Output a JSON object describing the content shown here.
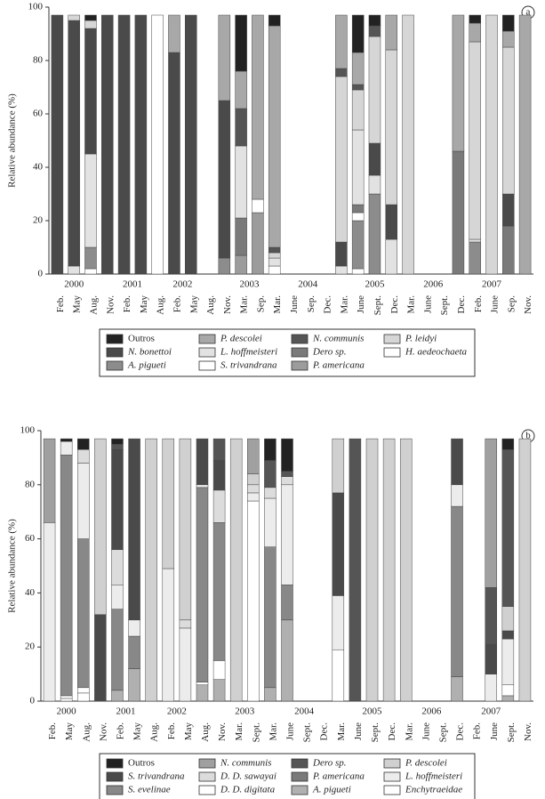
{
  "chart_data": [
    {
      "type": "bar",
      "stacked": true,
      "panel_label": "a",
      "y_label": "Relative abundance (%)",
      "categories": [
        "Feb.",
        "May",
        "Aug.",
        "Nov.",
        "Feb.",
        "May",
        "Aug.",
        "Feb.",
        "May",
        "Aug.",
        "Nov.",
        "Mar.",
        "Sep.",
        "Mar.",
        "June",
        "Sep.",
        "Dec.",
        "Mar.",
        "June",
        "Sept.",
        "Dec.",
        "Mar.",
        "June",
        "Sept.",
        "Dec.",
        "Feb.",
        "June",
        "Sep.",
        "Nov."
      ],
      "years": [
        "2000",
        "2001",
        "2002",
        "2003",
        "2004",
        "2005",
        "2006",
        "2007"
      ],
      "ylim": [
        0,
        100
      ],
      "yticks": [
        0,
        20,
        40,
        60,
        80,
        100
      ],
      "series": [
        {
          "name": "Outros",
          "color": "#222222",
          "values": [
            0,
            0,
            2,
            0,
            0,
            0,
            0,
            0,
            0,
            null,
            0,
            21,
            0,
            4,
            null,
            null,
            null,
            0,
            14,
            4,
            0,
            0,
            null,
            null,
            0,
            3,
            0,
            6,
            0
          ]
        },
        {
          "name": "P. descolei",
          "color": "#a8a8a8",
          "values": [
            0,
            0,
            0,
            0,
            0,
            0,
            0,
            14,
            0,
            null,
            32,
            14,
            69,
            83,
            null,
            null,
            null,
            20,
            12,
            0,
            13,
            0,
            null,
            null,
            51,
            7,
            0,
            6,
            97
          ]
        },
        {
          "name": "N. communis",
          "color": "#555555",
          "values": [
            0,
            0,
            0,
            0,
            0,
            0,
            0,
            0,
            0,
            null,
            0,
            14,
            0,
            2,
            null,
            null,
            null,
            3,
            2,
            4,
            0,
            0,
            null,
            null,
            0,
            0,
            0,
            0,
            0
          ]
        },
        {
          "name": "P. leidyi",
          "color": "#d6d6d6",
          "values": [
            0,
            2,
            3,
            0,
            0,
            0,
            0,
            0,
            0,
            null,
            0,
            0,
            0,
            2,
            null,
            null,
            null,
            62,
            15,
            40,
            58,
            97,
            null,
            null,
            0,
            74,
            97,
            55,
            0
          ]
        },
        {
          "name": "N. bonettoi",
          "color": "#4a4a4a",
          "values": [
            97,
            92,
            47,
            97,
            97,
            97,
            0,
            83,
            97,
            null,
            59,
            0,
            0,
            0,
            null,
            null,
            null,
            9,
            0,
            12,
            13,
            0,
            null,
            null,
            0,
            0,
            0,
            12,
            0
          ]
        },
        {
          "name": "L. hoffmeisteri",
          "color": "#e2e2e2",
          "values": [
            0,
            3,
            35,
            0,
            0,
            0,
            0,
            0,
            0,
            null,
            0,
            27,
            0,
            3,
            null,
            null,
            null,
            3,
            28,
            7,
            13,
            0,
            null,
            null,
            0,
            1,
            0,
            0,
            0
          ]
        },
        {
          "name": "Dero sp.",
          "color": "#7a7a7a",
          "values": [
            0,
            0,
            0,
            0,
            0,
            0,
            0,
            0,
            0,
            null,
            0,
            14,
            0,
            0,
            null,
            null,
            null,
            0,
            3,
            0,
            0,
            0,
            null,
            null,
            46,
            0,
            0,
            18,
            0
          ]
        },
        {
          "name": "H. aedeochaeta",
          "color": "#ffffff",
          "values": [
            0,
            0,
            0,
            0,
            0,
            0,
            0,
            0,
            0,
            null,
            0,
            0,
            0,
            0,
            null,
            null,
            null,
            0,
            3,
            0,
            0,
            0,
            null,
            null,
            0,
            0,
            0,
            0,
            0
          ]
        },
        {
          "name": "A. pigueti",
          "color": "#8c8c8c",
          "values": [
            0,
            0,
            8,
            0,
            0,
            0,
            0,
            0,
            0,
            null,
            6,
            0,
            0,
            0,
            null,
            null,
            null,
            0,
            18,
            30,
            0,
            0,
            null,
            null,
            0,
            12,
            0,
            0,
            0
          ]
        },
        {
          "name": "S. trivandrana",
          "color": "#ffffff",
          "values": [
            0,
            0,
            2,
            0,
            0,
            0,
            97,
            0,
            0,
            null,
            0,
            0,
            5,
            3,
            null,
            null,
            null,
            0,
            2,
            0,
            0,
            0,
            null,
            null,
            0,
            0,
            0,
            0,
            0
          ]
        },
        {
          "name": "P. americana",
          "color": "#9c9c9c",
          "values": [
            0,
            0,
            0,
            0,
            0,
            0,
            0,
            0,
            0,
            null,
            0,
            7,
            23,
            0,
            null,
            null,
            null,
            0,
            0,
            0,
            0,
            0,
            null,
            null,
            0,
            0,
            0,
            0,
            0
          ]
        }
      ]
    },
    {
      "type": "bar",
      "stacked": true,
      "panel_label": "b",
      "y_label": "Relative abundance (%)",
      "categories": [
        "Feb.",
        "May",
        "Aug.",
        "Nov.",
        "Feb.",
        "May",
        "Aug.",
        "Feb.",
        "May",
        "Aug.",
        "Nov.",
        "Mar.",
        "Sept.",
        "Mar.",
        "June",
        "Sept.",
        "Dec.",
        "Mar.",
        "June",
        "Sept.",
        "Dec.",
        "Mar.",
        "June",
        "Sept.",
        "Dec.",
        "Feb.",
        "June",
        "Sept.",
        "Nov."
      ],
      "years": [
        "2000",
        "2001",
        "2002",
        "2003",
        "2004",
        "2005",
        "2006",
        "2007"
      ],
      "ylim": [
        0,
        100
      ],
      "yticks": [
        0,
        20,
        40,
        60,
        80,
        100
      ],
      "series": [
        {
          "name": "Outros",
          "color": "#222222",
          "values": [
            0,
            1,
            4,
            0,
            2,
            0,
            0,
            0,
            0,
            0,
            0,
            0,
            0,
            8,
            12,
            null,
            null,
            0,
            0,
            0,
            0,
            0,
            null,
            null,
            0,
            null,
            0,
            4,
            0
          ]
        },
        {
          "name": "N. communis",
          "color": "#a0a0a0",
          "values": [
            31,
            0,
            0,
            0,
            0,
            0,
            0,
            0,
            0,
            0,
            0,
            0,
            13,
            0,
            0,
            null,
            null,
            0,
            0,
            0,
            0,
            0,
            null,
            null,
            0,
            null,
            55,
            0,
            0
          ]
        },
        {
          "name": "Dero sp.",
          "color": "#555555",
          "values": [
            0,
            0,
            0,
            0,
            2,
            0,
            0,
            0,
            0,
            0,
            8,
            0,
            0,
            10,
            2,
            null,
            null,
            0,
            97,
            0,
            0,
            0,
            null,
            null,
            0,
            null,
            21,
            58,
            0
          ]
        },
        {
          "name": "P. descolei",
          "color": "#d0d0d0",
          "values": [
            0,
            0,
            0,
            65,
            0,
            0,
            97,
            48,
            67,
            0,
            0,
            97,
            4,
            0,
            0,
            null,
            null,
            20,
            0,
            97,
            97,
            97,
            null,
            null,
            0,
            null,
            0,
            9,
            97
          ]
        },
        {
          "name": "S. trivandrana",
          "color": "#4a4a4a",
          "values": [
            0,
            0,
            0,
            32,
            37,
            67,
            0,
            0,
            0,
            17,
            11,
            0,
            0,
            0,
            0,
            null,
            null,
            38,
            0,
            0,
            0,
            0,
            null,
            null,
            17,
            null,
            11,
            3,
            0
          ]
        },
        {
          "name": "D. D. sawayai",
          "color": "#dcdcdc",
          "values": [
            0,
            0,
            5,
            0,
            13,
            0,
            0,
            0,
            3,
            0,
            12,
            0,
            3,
            4,
            3,
            null,
            null,
            0,
            0,
            0,
            0,
            0,
            null,
            null,
            0,
            null,
            0,
            0,
            0
          ]
        },
        {
          "name": "P. americana",
          "color": "#7a7a7a",
          "values": [
            0,
            0,
            0,
            0,
            0,
            0,
            0,
            0,
            0,
            0,
            0,
            0,
            0,
            0,
            0,
            null,
            null,
            0,
            0,
            0,
            0,
            0,
            null,
            null,
            0,
            null,
            0,
            0,
            0
          ]
        },
        {
          "name": "L. hoffmeisteri",
          "color": "#ececec",
          "values": [
            66,
            5,
            28,
            0,
            9,
            6,
            0,
            49,
            27,
            1,
            0,
            0,
            3,
            18,
            37,
            null,
            null,
            20,
            0,
            0,
            0,
            0,
            null,
            null,
            8,
            null,
            10,
            17,
            0
          ]
        },
        {
          "name": "S. evelinae",
          "color": "#888888",
          "values": [
            0,
            89,
            55,
            0,
            30,
            12,
            0,
            0,
            0,
            72,
            51,
            0,
            0,
            52,
            13,
            null,
            null,
            0,
            0,
            0,
            0,
            0,
            null,
            null,
            63,
            null,
            0,
            0,
            0
          ]
        },
        {
          "name": "D. D. digitata",
          "color": "#ffffff",
          "values": [
            0,
            1,
            2,
            0,
            0,
            0,
            0,
            0,
            0,
            1,
            7,
            0,
            74,
            0,
            0,
            null,
            null,
            19,
            0,
            0,
            0,
            0,
            null,
            null,
            0,
            null,
            0,
            4,
            0
          ]
        },
        {
          "name": "A. pigueti",
          "color": "#b0b0b0",
          "values": [
            0,
            0,
            0,
            0,
            4,
            12,
            0,
            0,
            0,
            6,
            8,
            0,
            0,
            5,
            30,
            null,
            null,
            0,
            0,
            0,
            0,
            0,
            null,
            null,
            9,
            null,
            0,
            2,
            0
          ]
        },
        {
          "name": "Enchytraeidae",
          "color": "#ffffff",
          "values": [
            0,
            1,
            3,
            0,
            0,
            0,
            0,
            0,
            0,
            0,
            0,
            0,
            0,
            0,
            0,
            null,
            null,
            0,
            0,
            0,
            0,
            0,
            null,
            null,
            0,
            null,
            0,
            0,
            0
          ]
        }
      ]
    }
  ]
}
